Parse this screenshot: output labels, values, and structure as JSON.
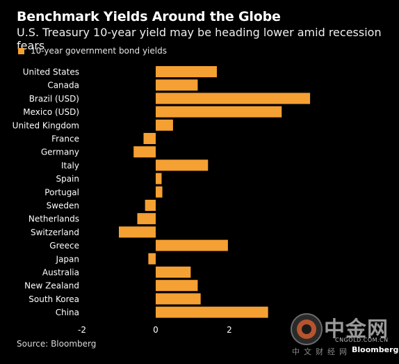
{
  "header": {
    "title": "Benchmark Yields Around the Globe",
    "subtitle": "U.S. Treasury 10-year yield may be heading lower amid recession fears"
  },
  "legend_label": "10-year government bond yields",
  "source": "Source: Bloomberg",
  "watermark": {
    "logo_text": "中金网",
    "domain": "CNGOLD.COM.CN",
    "sub": "中文财经网",
    "brand": "Bloomberg"
  },
  "colors": {
    "bar": "#f5a033",
    "background": "#000000",
    "axis": "#ffffff"
  },
  "chart_data": {
    "type": "bar",
    "orientation": "horizontal",
    "title": "Benchmark Yields Around the Globe",
    "subtitle": "U.S. Treasury 10-year yield may be heading lower amid recession fears",
    "categories": [
      "United States",
      "Canada",
      "Brazil (USD)",
      "Mexico (USD)",
      "United Kingdom",
      "France",
      "Germany",
      "Italy",
      "Spain",
      "Portugal",
      "Sweden",
      "Netherlands",
      "Switzerland",
      "Greece",
      "Japan",
      "Australia",
      "New Zealand",
      "South Korea",
      "China"
    ],
    "series": [
      {
        "name": "10-year government bond yields",
        "values": [
          1.66,
          1.14,
          4.19,
          3.42,
          0.47,
          -0.33,
          -0.6,
          1.42,
          0.16,
          0.18,
          -0.29,
          -0.5,
          -1.0,
          1.96,
          -0.2,
          0.95,
          1.14,
          1.22,
          3.05
        ]
      }
    ],
    "xlim": [
      -2,
      4.3
    ],
    "xticks": [
      -2,
      0,
      2
    ],
    "grid": false,
    "legend": "top-left"
  }
}
